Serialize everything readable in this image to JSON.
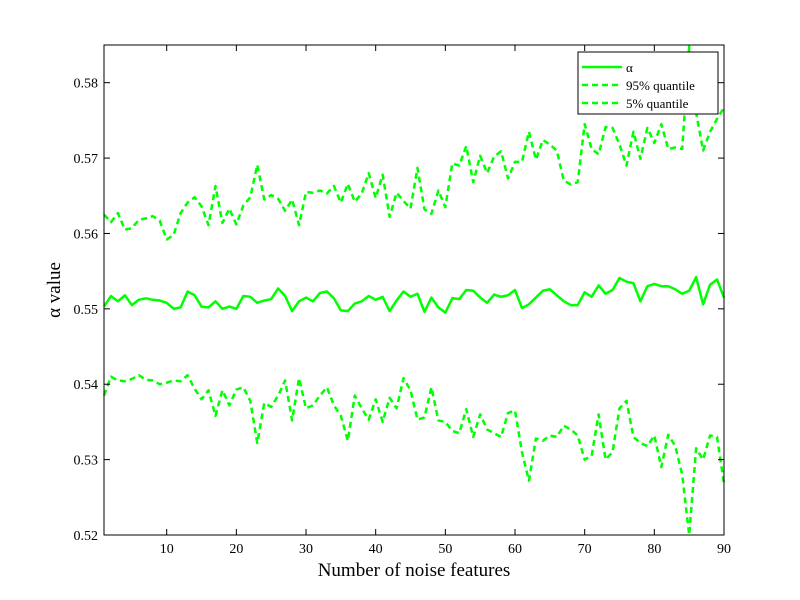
{
  "chart_data": {
    "type": "line",
    "xlabel": "Number of noise features",
    "ylabel": "α value",
    "xlim": [
      1,
      90
    ],
    "ylim": [
      0.52,
      0.585
    ],
    "xticks": [
      10,
      20,
      30,
      40,
      50,
      60,
      70,
      80,
      90
    ],
    "yticks": [
      0.52,
      0.53,
      0.54,
      0.55,
      0.56,
      0.57,
      0.58
    ],
    "ytick_labels": [
      "0.52",
      "0.53",
      "0.54",
      "0.55",
      "0.56",
      "0.57",
      "0.58"
    ],
    "grid": false,
    "legend_position": "top-right",
    "line_color": "#00ff00",
    "x": [
      1,
      2,
      3,
      4,
      5,
      6,
      7,
      8,
      9,
      10,
      11,
      12,
      13,
      14,
      15,
      16,
      17,
      18,
      19,
      20,
      21,
      22,
      23,
      24,
      25,
      26,
      27,
      28,
      29,
      30,
      31,
      32,
      33,
      34,
      35,
      36,
      37,
      38,
      39,
      40,
      41,
      42,
      43,
      44,
      45,
      46,
      47,
      48,
      49,
      50,
      51,
      52,
      53,
      54,
      55,
      56,
      57,
      58,
      59,
      60,
      61,
      62,
      63,
      64,
      65,
      66,
      67,
      68,
      69,
      70,
      71,
      72,
      73,
      74,
      75,
      76,
      77,
      78,
      79,
      80,
      81,
      82,
      83,
      84,
      85,
      86,
      87,
      88,
      89,
      90
    ],
    "series": [
      {
        "name": "α",
        "style": "solid",
        "values": [
          0.5503,
          0.5517,
          0.551,
          0.5518,
          0.5505,
          0.5512,
          0.5514,
          0.5512,
          0.5511,
          0.5508,
          0.55,
          0.5502,
          0.5523,
          0.5518,
          0.5503,
          0.5502,
          0.551,
          0.55,
          0.5503,
          0.55,
          0.5517,
          0.5516,
          0.5508,
          0.5511,
          0.5513,
          0.5527,
          0.5517,
          0.5497,
          0.551,
          0.5515,
          0.551,
          0.5521,
          0.5523,
          0.5514,
          0.5498,
          0.5497,
          0.5507,
          0.551,
          0.5517,
          0.5512,
          0.5516,
          0.5497,
          0.5511,
          0.5523,
          0.5516,
          0.552,
          0.5496,
          0.5515,
          0.5502,
          0.5495,
          0.5514,
          0.5513,
          0.5525,
          0.5524,
          0.5515,
          0.5508,
          0.5519,
          0.5516,
          0.5518,
          0.5525,
          0.5501,
          0.5506,
          0.5515,
          0.5524,
          0.5526,
          0.5518,
          0.551,
          0.5505,
          0.5505,
          0.5522,
          0.5516,
          0.5531,
          0.552,
          0.5525,
          0.5541,
          0.5536,
          0.5534,
          0.551,
          0.553,
          0.5533,
          0.553,
          0.553,
          0.5526,
          0.552,
          0.5524,
          0.5542,
          0.5506,
          0.5532,
          0.5539,
          0.5515
        ]
      },
      {
        "name": "95% quantile",
        "style": "dashed",
        "values": [
          0.5625,
          0.5615,
          0.5627,
          0.5605,
          0.5607,
          0.5618,
          0.562,
          0.5623,
          0.5617,
          0.5592,
          0.5598,
          0.5627,
          0.5641,
          0.5648,
          0.5636,
          0.5611,
          0.5663,
          0.5614,
          0.5633,
          0.5612,
          0.5637,
          0.5648,
          0.5691,
          0.5645,
          0.5651,
          0.5646,
          0.563,
          0.5645,
          0.5611,
          0.5655,
          0.5654,
          0.5657,
          0.5653,
          0.5663,
          0.5641,
          0.5666,
          0.5642,
          0.5653,
          0.568,
          0.5647,
          0.5678,
          0.5622,
          0.5654,
          0.5643,
          0.5633,
          0.5687,
          0.5632,
          0.5626,
          0.5657,
          0.5635,
          0.5693,
          0.569,
          0.5716,
          0.5668,
          0.5703,
          0.568,
          0.5702,
          0.5709,
          0.5673,
          0.5695,
          0.5695,
          0.5735,
          0.5698,
          0.5724,
          0.5718,
          0.571,
          0.567,
          0.5665,
          0.5668,
          0.5745,
          0.5712,
          0.5705,
          0.5741,
          0.574,
          0.5718,
          0.569,
          0.5735,
          0.5699,
          0.574,
          0.572,
          0.5745,
          0.5712,
          0.5714,
          0.5712,
          0.5848,
          0.576,
          0.571,
          0.5735,
          0.5752,
          0.5767
        ]
      },
      {
        "name": "5% quantile",
        "style": "dashed",
        "values": [
          0.5385,
          0.541,
          0.5405,
          0.5404,
          0.5407,
          0.5412,
          0.5406,
          0.5405,
          0.54,
          0.5402,
          0.5405,
          0.5404,
          0.5412,
          0.5394,
          0.538,
          0.5392,
          0.5358,
          0.5392,
          0.5372,
          0.5393,
          0.5396,
          0.5378,
          0.5322,
          0.5375,
          0.537,
          0.5385,
          0.5405,
          0.5352,
          0.5408,
          0.5368,
          0.5372,
          0.5385,
          0.5396,
          0.5372,
          0.5358,
          0.5325,
          0.5385,
          0.5368,
          0.5353,
          0.538,
          0.535,
          0.5382,
          0.5368,
          0.5408,
          0.5392,
          0.5353,
          0.5356,
          0.5396,
          0.5352,
          0.535,
          0.5338,
          0.5335,
          0.5367,
          0.533,
          0.536,
          0.534,
          0.5335,
          0.533,
          0.5362,
          0.5365,
          0.531,
          0.5272,
          0.5328,
          0.5325,
          0.5332,
          0.533,
          0.5345,
          0.534,
          0.5332,
          0.53,
          0.5305,
          0.536,
          0.53,
          0.531,
          0.5368,
          0.5378,
          0.533,
          0.5322,
          0.5318,
          0.5332,
          0.529,
          0.5333,
          0.5318,
          0.528,
          0.52,
          0.5315,
          0.53,
          0.5332,
          0.533,
          0.5268
        ]
      }
    ]
  }
}
